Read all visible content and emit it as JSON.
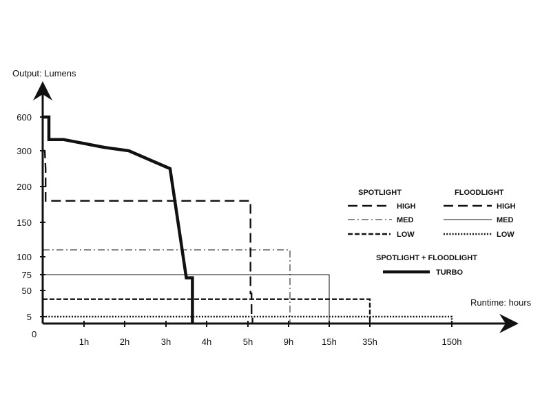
{
  "chart_data": {
    "type": "line",
    "ylabel": "Output: Lumens",
    "xlabel": "Runtime: hours",
    "origin_label": "0",
    "y_ticks": [
      "5",
      "50",
      "75",
      "100",
      "150",
      "200",
      "300",
      "600"
    ],
    "x_ticks": [
      "1h",
      "2h",
      "3h",
      "4h",
      "5h",
      "9h",
      "15h",
      "35h",
      "150h"
    ],
    "x_scale": "piecewise (nonlinear, ticks evenly spaced)",
    "y_scale": "piecewise (nonlinear)",
    "legend": {
      "spotlight_header": "SPOTLIGHT",
      "floodlight_header": "FLOODLIGHT",
      "combo_header": "SPOTLIGHT + FLOODLIGHT",
      "high": "HIGH",
      "med": "MED",
      "low": "LOW",
      "turbo": "TURBO"
    },
    "series": [
      {
        "name": "SPOTLIGHT + FLOODLIGHT TURBO",
        "group": "combo",
        "style": "turbo",
        "x": [
          0,
          0.15,
          0.15,
          0.5,
          1.5,
          2.1,
          3.1,
          3.5,
          3.55,
          3.65,
          3.65
        ],
        "y": [
          600,
          600,
          400,
          400,
          330,
          300,
          250,
          70,
          70,
          70,
          0
        ]
      },
      {
        "name": "SPOTLIGHT HIGH",
        "group": "spotlight",
        "style": "high",
        "x": [
          0,
          0.05,
          0.07,
          0.07,
          5.25,
          5.25,
          5.35,
          5.35,
          5.45,
          5.45
        ],
        "y": [
          300,
          300,
          250,
          180,
          180,
          45,
          45,
          8,
          8,
          0
        ]
      },
      {
        "name": "SPOTLIGHT MED",
        "group": "spotlight",
        "style": "med",
        "x": [
          0,
          9.2,
          9.2
        ],
        "y": [
          110,
          110,
          0
        ]
      },
      {
        "name": "SPOTLIGHT LOW",
        "group": "spotlight",
        "style": "low",
        "x": [
          0,
          35,
          35
        ],
        "y": [
          35,
          35,
          0
        ]
      },
      {
        "name": "FLOODLIGHT MED",
        "group": "floodlight",
        "style": "floodmed",
        "x": [
          0,
          15,
          15
        ],
        "y": [
          75,
          75,
          0
        ]
      },
      {
        "name": "FLOODLIGHT LOW",
        "group": "floodlight",
        "style": "floodlow",
        "x": [
          0,
          150,
          150
        ],
        "y": [
          5,
          5,
          0
        ]
      }
    ],
    "grid": false,
    "legend_position": "right"
  }
}
